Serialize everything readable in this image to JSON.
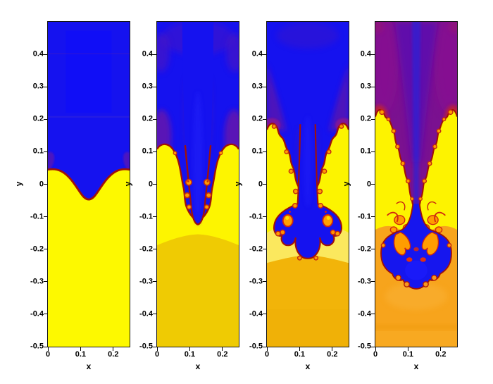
{
  "figure": {
    "background": "#ffffff",
    "n_panels": 4
  },
  "chart_data": {
    "type": "heatmap",
    "layout": "four vertical panels in a row, time sequence from left to right",
    "subject": "Rayleigh-Taylor instability simulation, fluid density field",
    "colormap": "jet",
    "color_meaning": {
      "blue": "heavy fluid (initially on top)",
      "yellow": "light fluid (initially below)",
      "gold_orange": "light fluid at depth / late time",
      "dark_red": "thin interface between fluids",
      "purple": "partially mixed heavy fluid",
      "orange_curls": "vortex roll-ups of mixed fluid"
    },
    "x": {
      "label": "x",
      "lim": [
        0,
        0.25
      ],
      "ticks": [
        0,
        0.1,
        0.2
      ],
      "tick_labels": [
        "0",
        "0.1",
        "0.2"
      ]
    },
    "y": {
      "label": "y",
      "lim": [
        -0.5,
        0.5
      ],
      "ticks": [
        0.4,
        0.3,
        0.2,
        0.1,
        0,
        -0.1,
        -0.2,
        -0.3,
        -0.4,
        -0.5
      ],
      "tick_labels": [
        "0.4",
        "0.3",
        "0.2",
        "0.1",
        "0",
        "-0.1",
        "-0.2",
        "-0.3",
        "-0.4",
        "-0.5"
      ]
    },
    "panels": [
      {
        "index": 1,
        "bubble_front_y": 0.05,
        "spike_tip_y": -0.05,
        "description": "initial cosine perturbation of the interface about y=0"
      },
      {
        "index": 2,
        "bubble_front_y": 0.12,
        "spike_tip_y": -0.13,
        "description": "central spike falls, side bubbles rise, first small vortex roll-ups"
      },
      {
        "index": 3,
        "bubble_front_y": 0.18,
        "spike_tip_y": -0.22,
        "description": "mushroom cap forms with Kelvin-Helmholtz roll-ups along the spike"
      },
      {
        "index": 4,
        "bubble_front_y": 0.23,
        "spike_tip_y": -0.28,
        "description": "late-time turbulent mixing, broad mushroom head, mixed purple upper layer"
      }
    ],
    "colors": {
      "blue": "#1512ef",
      "bright_yellow": "#fdf500",
      "gold": "#efcb03",
      "amber": "#f2b409",
      "orange_bg": "#f7a41c",
      "purple": "#6a16a8",
      "magenta_purple": "#8c1390",
      "violet": "#5c10b0",
      "crimson": "#c22432",
      "interface_red": "#a01208",
      "curl_orange": "#ff9d00"
    }
  }
}
